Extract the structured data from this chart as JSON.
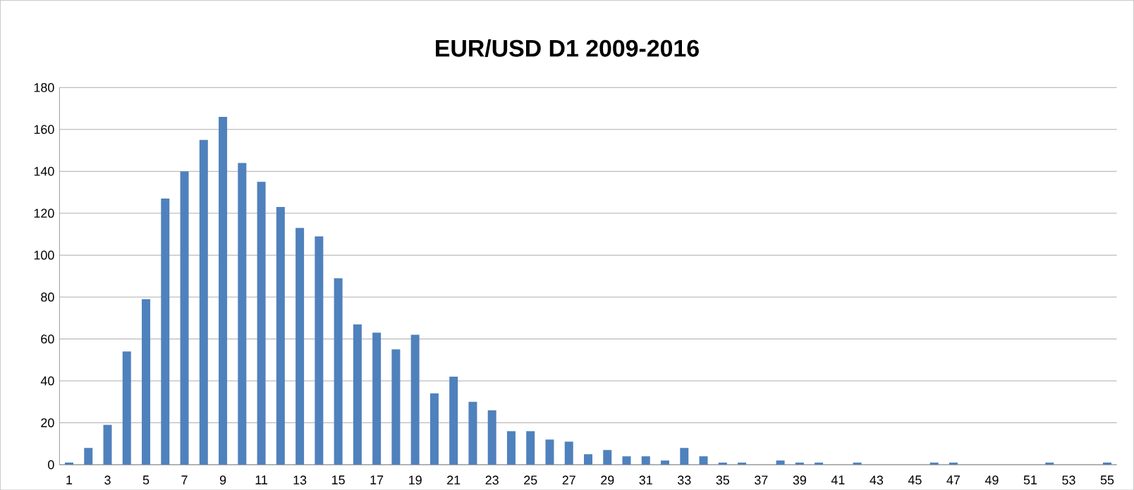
{
  "chart_data": {
    "type": "bar",
    "title": "EUR/USD D1 2009-2016",
    "categories": [
      "1",
      null,
      "3",
      null,
      "5",
      null,
      "7",
      null,
      "9",
      null,
      "11",
      null,
      "13",
      null,
      "15",
      null,
      "17",
      null,
      "19",
      null,
      "21",
      null,
      "23",
      null,
      "25",
      null,
      "27",
      null,
      "29",
      null,
      "31",
      null,
      "33",
      null,
      "35",
      null,
      "37",
      null,
      "39",
      null,
      "41",
      null,
      "43",
      null,
      "45",
      null,
      "47",
      null,
      "49",
      null,
      "51",
      null,
      "53",
      null,
      "55"
    ],
    "values": [
      1,
      8,
      19,
      54,
      79,
      127,
      140,
      155,
      166,
      144,
      135,
      123,
      113,
      109,
      89,
      67,
      63,
      55,
      62,
      34,
      42,
      30,
      26,
      16,
      16,
      12,
      11,
      5,
      7,
      4,
      4,
      2,
      8,
      4,
      1,
      1,
      0,
      2,
      1,
      1,
      0,
      1,
      0,
      0,
      0,
      1,
      1,
      0,
      0,
      0,
      0,
      1,
      0,
      0,
      1
    ],
    "color": "#4f81bd",
    "ylim": [
      0,
      180
    ],
    "yticks": [
      0,
      20,
      40,
      60,
      80,
      100,
      120,
      140,
      160,
      180
    ],
    "grid": "y"
  }
}
